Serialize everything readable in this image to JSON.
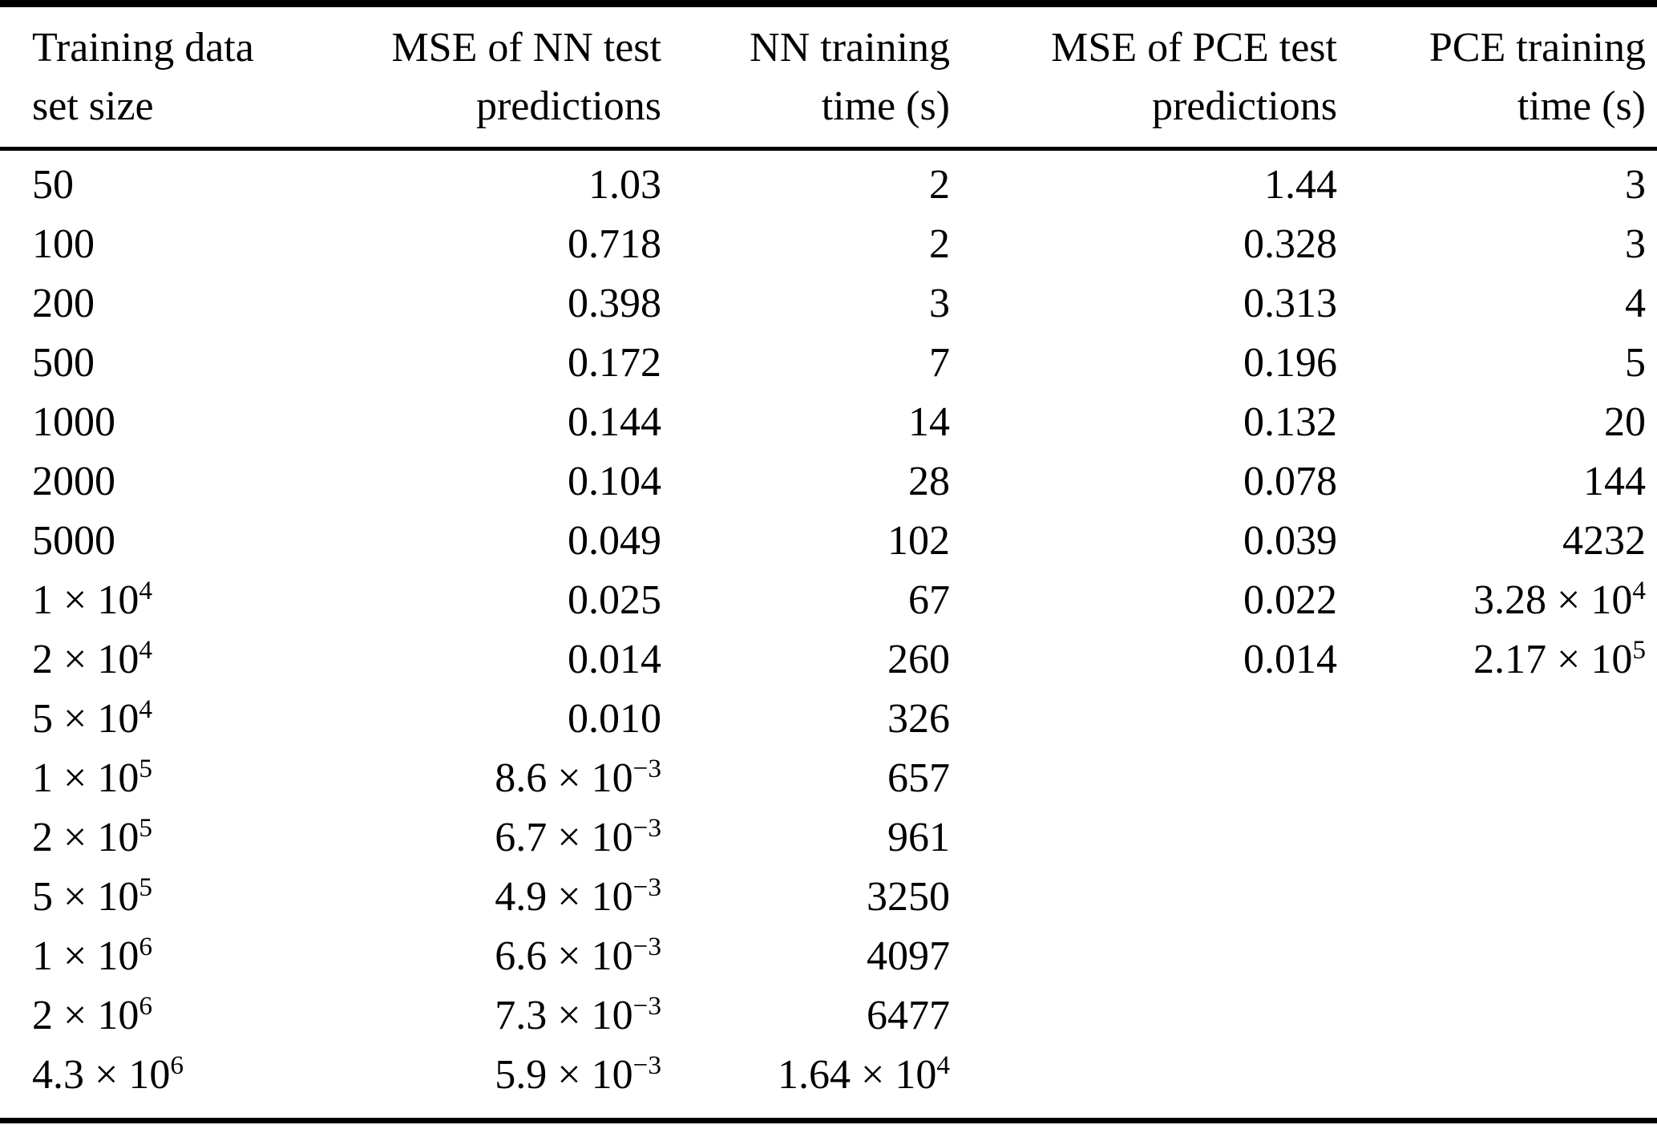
{
  "table": {
    "description": "Comparison of NN and PCE surrogate models: test prediction MSE and training time versus training data set size",
    "colors": {
      "text": "#000000",
      "background": "#ffffff",
      "rule": "#000000"
    },
    "columns": [
      {
        "line1": "Training data",
        "line2": "set size",
        "align": "left"
      },
      {
        "line1": "MSE of NN test",
        "line2": "predictions",
        "align": "right"
      },
      {
        "line1": "NN training",
        "line2": "time (s)",
        "align": "right"
      },
      {
        "line1": "MSE of PCE test",
        "line2": "predictions",
        "align": "right"
      },
      {
        "line1": "PCE training",
        "line2": "time (s)",
        "align": "right"
      }
    ],
    "rows": [
      [
        "50",
        "1.03",
        "2",
        "1.44",
        "3"
      ],
      [
        "100",
        "0.718",
        "2",
        "0.328",
        "3"
      ],
      [
        "200",
        "0.398",
        "3",
        "0.313",
        "4"
      ],
      [
        "500",
        "0.172",
        "7",
        "0.196",
        "5"
      ],
      [
        "1000",
        "0.144",
        "14",
        "0.132",
        "20"
      ],
      [
        "2000",
        "0.104",
        "28",
        "0.078",
        "144"
      ],
      [
        "5000",
        "0.049",
        "102",
        "0.039",
        "4232"
      ],
      [
        "1 × 10^4",
        "0.025",
        "67",
        "0.022",
        "3.28 × 10^4"
      ],
      [
        "2 × 10^4",
        "0.014",
        "260",
        "0.014",
        "2.17 × 10^5"
      ],
      [
        "5 × 10^4",
        "0.010",
        "326",
        "",
        ""
      ],
      [
        "1 × 10^5",
        "8.6 × 10^−3",
        "657",
        "",
        ""
      ],
      [
        "2 × 10^5",
        "6.7 × 10^−3",
        "961",
        "",
        ""
      ],
      [
        "5 × 10^5",
        "4.9 × 10^−3",
        "3250",
        "",
        ""
      ],
      [
        "1 × 10^6",
        "6.6 × 10^−3",
        "4097",
        "",
        ""
      ],
      [
        "2 × 10^6",
        "7.3 × 10^−3",
        "6477",
        "",
        ""
      ],
      [
        "4.3 × 10^6",
        "5.9 × 10^−3",
        "1.64 × 10^4",
        "",
        ""
      ]
    ]
  }
}
